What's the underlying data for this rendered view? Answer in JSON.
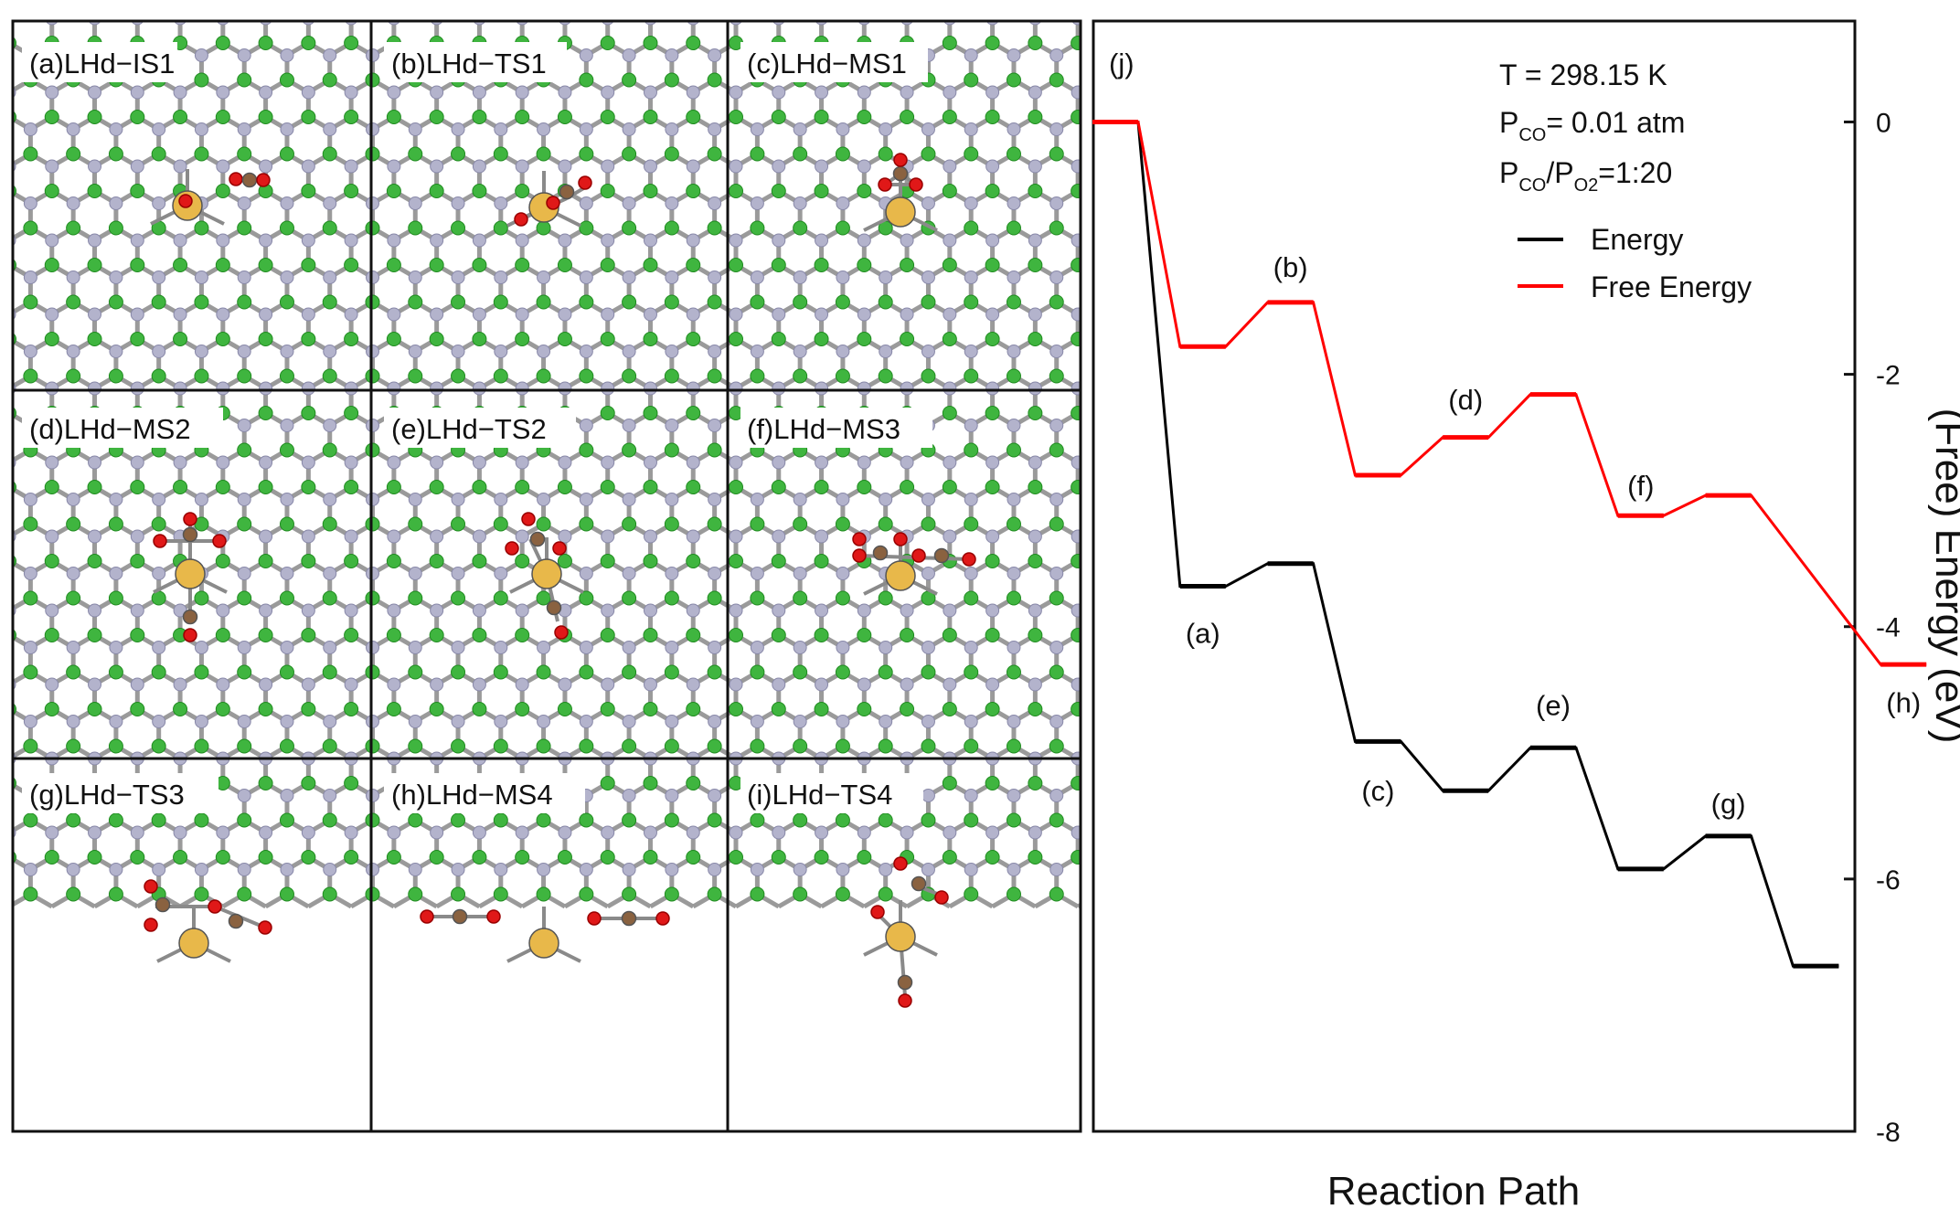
{
  "panels": [
    {
      "label": "(a)LHd−IS1"
    },
    {
      "label": "(b)LHd−TS1"
    },
    {
      "label": "(c)LHd−MS1"
    },
    {
      "label": "(d)LHd−MS2"
    },
    {
      "label": "(e)LHd−TS2"
    },
    {
      "label": "(f)LHd−MS3"
    },
    {
      "label": "(g)LHd−TS3"
    },
    {
      "label": "(h)LHd−MS4"
    },
    {
      "label": "(i)LHd−TS4"
    }
  ],
  "atom_colors": {
    "N": "#b3b3cc",
    "B": "#3fb53f",
    "bond": "#9a9a9a",
    "metal": "#e8b84a",
    "C": "#8a6240",
    "O": "#e01818"
  },
  "chart_data": {
    "type": "line",
    "panel_label": "(j)",
    "xlabel": "Reaction Path",
    "ylabel": "(Free) Energy (eV)",
    "ylim": [
      -8,
      0
    ],
    "y_extent": [
      -8,
      0.8
    ],
    "yticks": [
      "0",
      "-2",
      "-4",
      "-6",
      "-8"
    ],
    "conditions": {
      "line1": "T = 298.15 K",
      "line2_main": "P",
      "line2_sub": "CO",
      "line2_rest": "= 0.01 atm",
      "line3_p1": "P",
      "line3_sub1": "CO",
      "line3_slash": "/P",
      "line3_sub2": "O2",
      "line3_rest": "=1:20"
    },
    "legend": [
      {
        "name": "Energy",
        "color": "#000000"
      },
      {
        "name": "Free Energy",
        "color": "#ff0000"
      }
    ],
    "x": [
      0,
      1,
      2,
      3,
      4,
      5,
      6,
      7,
      8,
      9
    ],
    "series": [
      {
        "name": "Energy",
        "color": "#000000",
        "values": [
          0,
          -3.68,
          -3.5,
          -4.91,
          -5.3,
          -4.96,
          -5.92,
          -5.66,
          -6.69,
          null
        ]
      },
      {
        "name": "Free Energy",
        "color": "#ff0000",
        "values": [
          0,
          -1.78,
          -1.43,
          -2.8,
          -2.5,
          -2.16,
          -3.12,
          -2.96,
          null,
          -4.3
        ]
      }
    ],
    "state_labels": [
      {
        "text": "(a)",
        "x": 1,
        "y": -4.05
      },
      {
        "text": "(b)",
        "x": 2,
        "y": -1.15
      },
      {
        "text": "(c)",
        "x": 3,
        "y": -5.3
      },
      {
        "text": "(d)",
        "x": 4,
        "y": -2.2
      },
      {
        "text": "(e)",
        "x": 5,
        "y": -4.62
      },
      {
        "text": "(f)",
        "x": 6,
        "y": -2.88
      },
      {
        "text": "(g)",
        "x": 7,
        "y": -5.4
      },
      {
        "text": "(h)",
        "x": 9,
        "y": -4.6
      }
    ]
  }
}
